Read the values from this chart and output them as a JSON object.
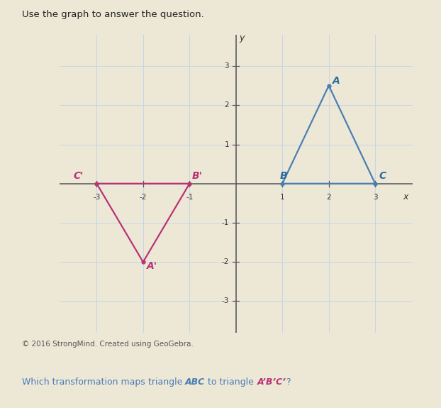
{
  "title": "Use the graph to answer the question.",
  "triangle_ABC": {
    "A": [
      2,
      2.5
    ],
    "B": [
      1,
      0
    ],
    "C": [
      3,
      0
    ],
    "color": "#4a7fb5",
    "label_color": "#2a6aa0"
  },
  "triangle_A1B1C1": {
    "A1": [
      -2,
      -2
    ],
    "B1": [
      -1,
      0
    ],
    "C1": [
      -3,
      0
    ],
    "color": "#b83278",
    "label_color": "#b83278"
  },
  "xlim": [
    -3.8,
    3.8
  ],
  "ylim": [
    -3.8,
    3.8
  ],
  "xticks": [
    -3,
    -2,
    -1,
    1,
    2,
    3
  ],
  "yticks": [
    -3,
    -2,
    -1,
    1,
    2,
    3
  ],
  "background_color": "#ede8d5",
  "grid_color": "#c5d5e8",
  "axis_color": "#555555",
  "footer": "© 2016 StrongMind. Created using GeoGebra.",
  "question_prefix": "Which transformation maps ",
  "question_abc_label": "triangle ABC",
  "question_mid": " to triangle ",
  "question_a1b1c1_label": "A’B’C’",
  "question_suffix": "?",
  "question_color_normal": "#4a7aba",
  "question_color_abc": "#4a7fb5",
  "question_color_a1b1c1": "#b83278",
  "title_fontsize": 9.5,
  "label_fontsize": 9,
  "tick_fontsize": 7.5,
  "footer_fontsize": 7.5
}
